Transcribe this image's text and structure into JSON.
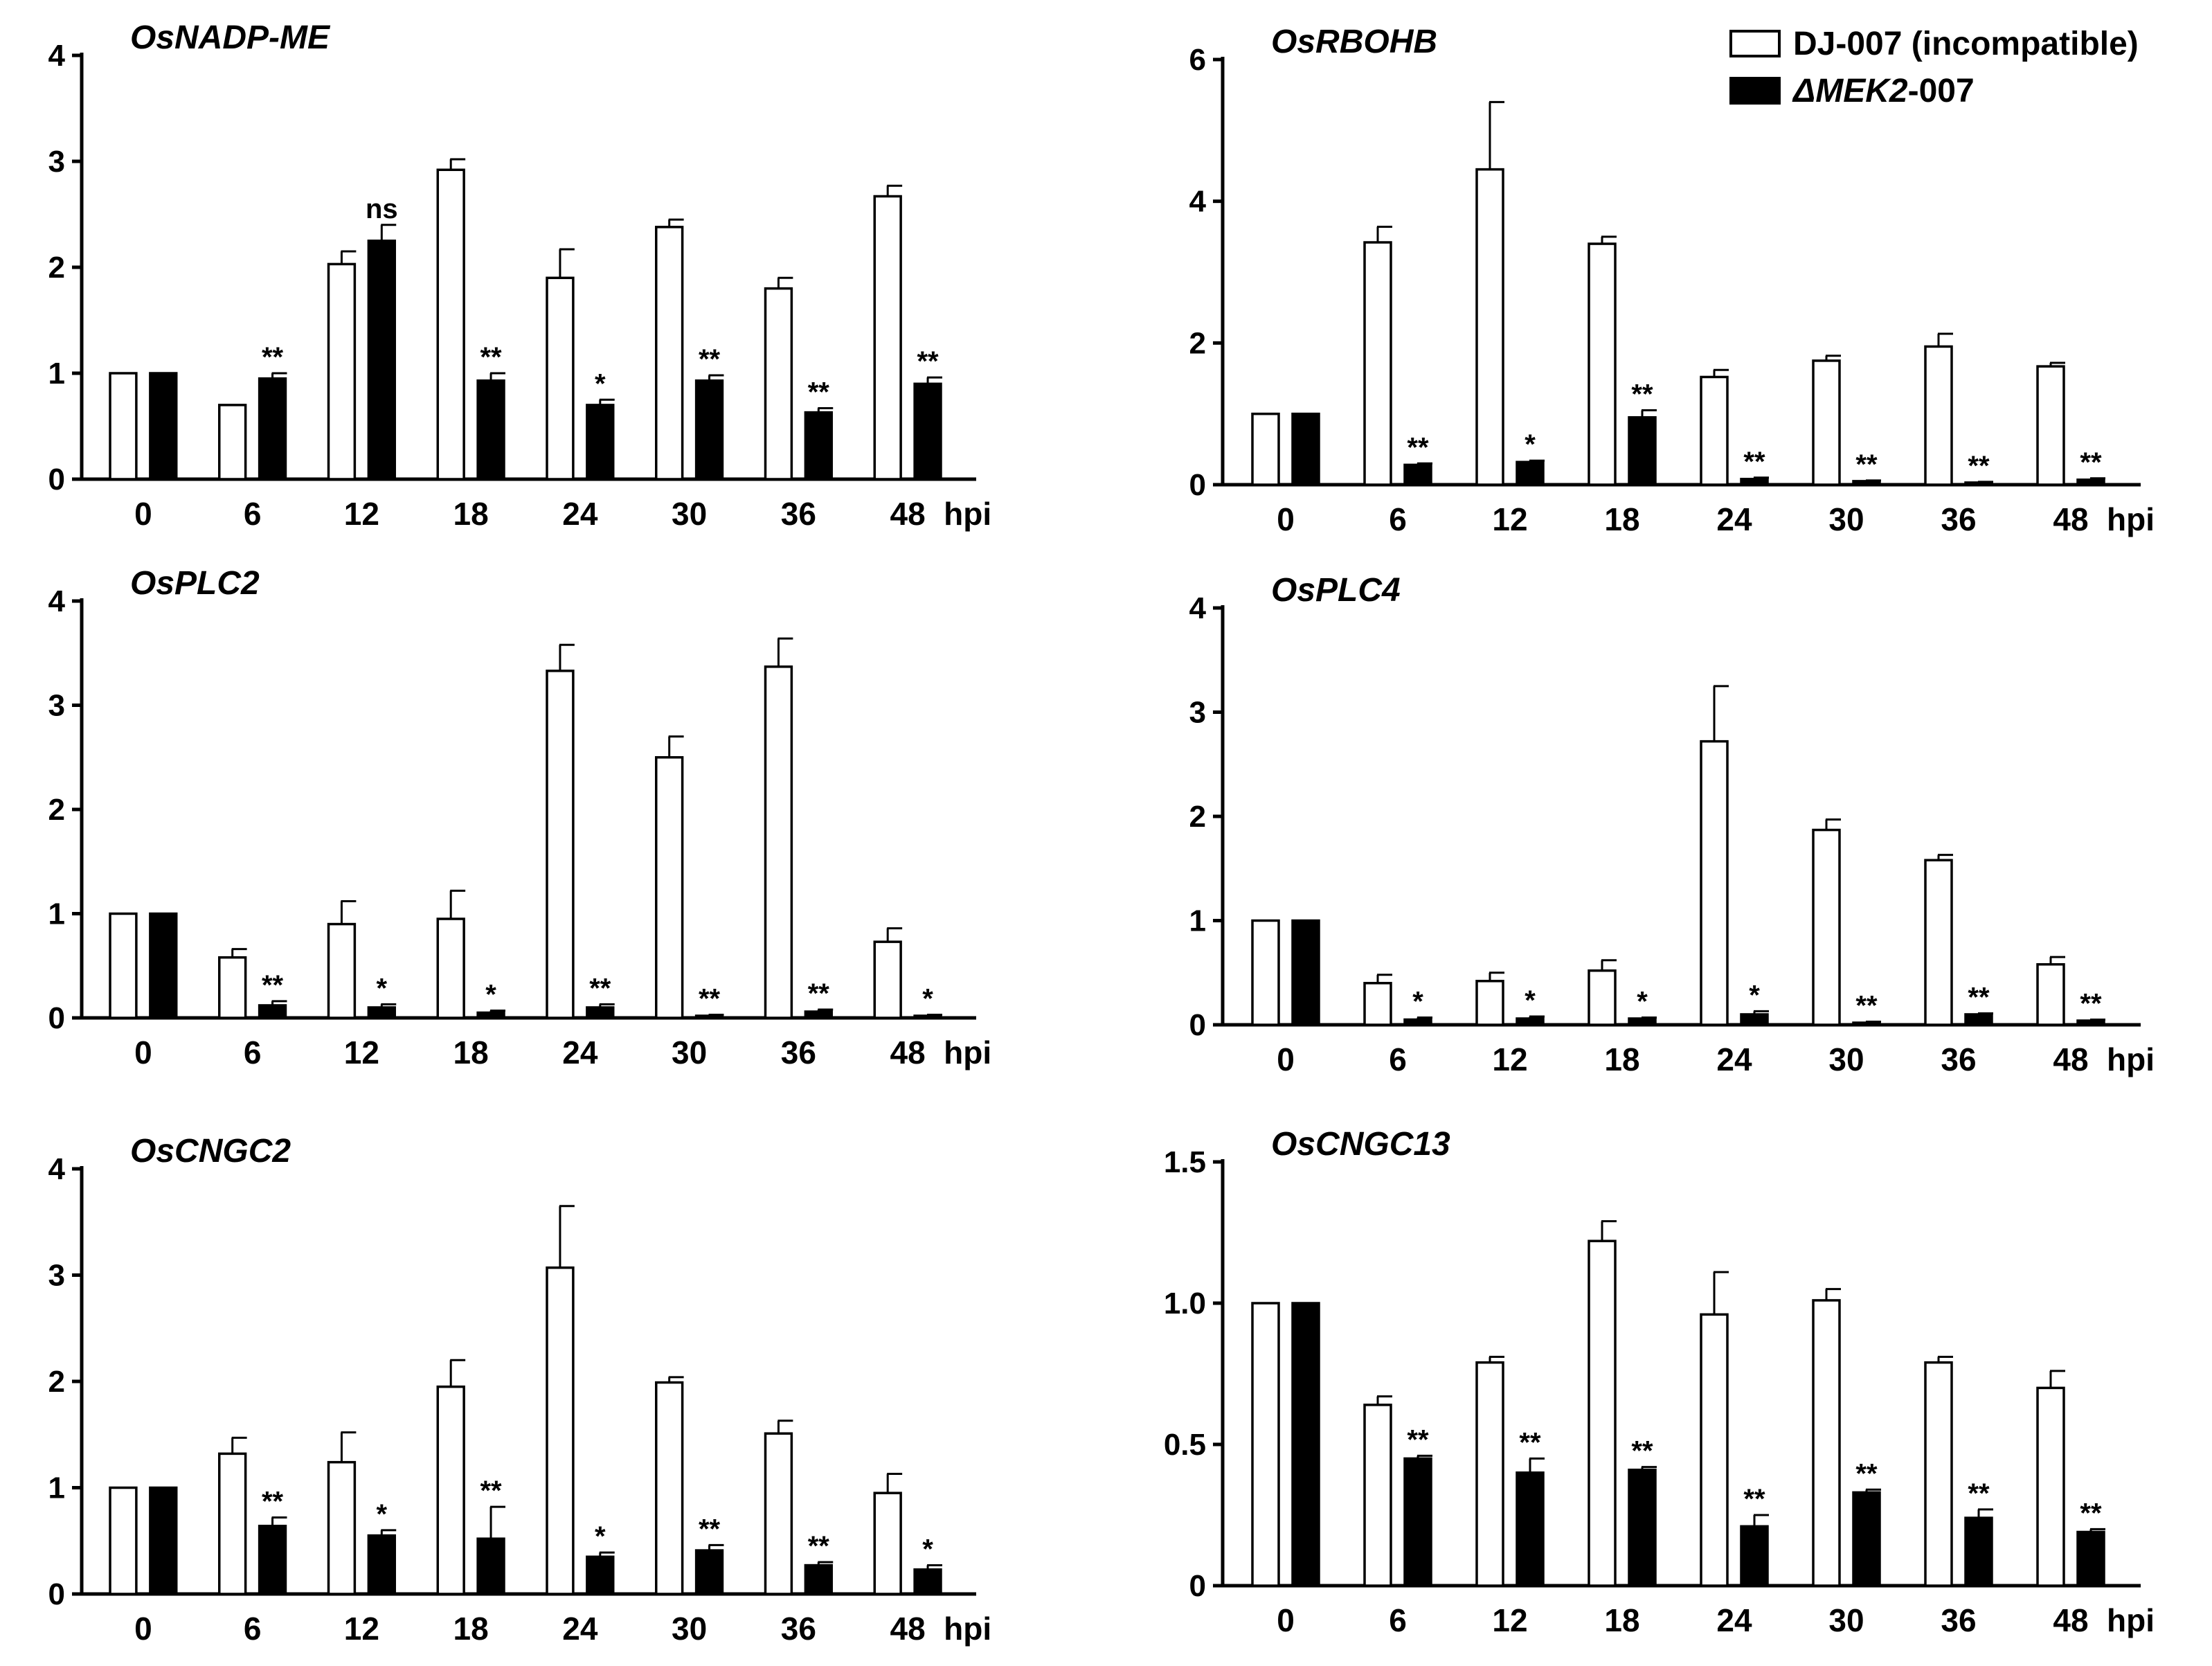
{
  "legend": {
    "entries": [
      {
        "label_parts": [
          {
            "text": "DJ-007 (incompatible)",
            "italic": false
          }
        ],
        "fill": "#ffffff"
      },
      {
        "label_parts": [
          {
            "text": "ΔMEK2",
            "italic": true
          },
          {
            "text": "-007",
            "italic": false
          }
        ],
        "fill": "#000000"
      }
    ]
  },
  "colors": {
    "open_bar": "#ffffff",
    "filled_bar": "#000000",
    "stroke": "#000000"
  },
  "chart_data": [
    {
      "type": "bar",
      "title": "OsNADP-ME",
      "categories": [
        "0",
        "6",
        "12",
        "18",
        "24",
        "30",
        "36",
        "48"
      ],
      "x_unit": "hpi",
      "ylim": [
        0,
        4
      ],
      "yticks": [
        "0",
        "1",
        "2",
        "3",
        "4"
      ],
      "series": [
        {
          "values": [
            1.0,
            0.7,
            2.03,
            2.92,
            1.9,
            2.38,
            1.8,
            2.67
          ],
          "errors": [
            0,
            0,
            0.12,
            0.1,
            0.27,
            0.07,
            0.1,
            0.1
          ]
        },
        {
          "values": [
            1.0,
            0.95,
            2.25,
            0.93,
            0.7,
            0.93,
            0.63,
            0.9
          ],
          "errors": [
            0,
            0.05,
            0.15,
            0.07,
            0.05,
            0.05,
            0.04,
            0.06
          ]
        }
      ],
      "significance": [
        "",
        "**",
        "ns",
        "**",
        "*",
        "**",
        "**",
        "**"
      ]
    },
    {
      "type": "bar",
      "title": "OsRBOHB",
      "categories": [
        "0",
        "6",
        "12",
        "18",
        "24",
        "30",
        "36",
        "48"
      ],
      "x_unit": "hpi",
      "ylim": [
        0,
        6
      ],
      "yticks": [
        "0",
        "2",
        "4",
        "6"
      ],
      "series": [
        {
          "values": [
            1.0,
            3.42,
            4.45,
            3.4,
            1.52,
            1.75,
            1.95,
            1.67
          ],
          "errors": [
            0,
            0.22,
            0.95,
            0.1,
            0.1,
            0.07,
            0.18,
            0.05
          ]
        },
        {
          "values": [
            1.0,
            0.28,
            0.32,
            0.95,
            0.08,
            0.05,
            0.03,
            0.07
          ],
          "errors": [
            0,
            0.02,
            0.02,
            0.1,
            0.02,
            0.01,
            0.01,
            0.02
          ]
        }
      ],
      "significance": [
        "",
        "**",
        "*",
        "**",
        "**",
        "**",
        "**",
        "**"
      ]
    },
    {
      "type": "bar",
      "title": "OsPLC2",
      "categories": [
        "0",
        "6",
        "12",
        "18",
        "24",
        "30",
        "36",
        "48"
      ],
      "x_unit": "hpi",
      "ylim": [
        0,
        4
      ],
      "yticks": [
        "0",
        "1",
        "2",
        "3",
        "4"
      ],
      "series": [
        {
          "values": [
            1.0,
            0.58,
            0.9,
            0.95,
            3.33,
            2.5,
            3.37,
            0.73
          ],
          "errors": [
            0,
            0.08,
            0.22,
            0.27,
            0.25,
            0.2,
            0.27,
            0.13
          ]
        },
        {
          "values": [
            1.0,
            0.12,
            0.1,
            0.05,
            0.1,
            0.02,
            0.06,
            0.02
          ],
          "errors": [
            0,
            0.04,
            0.03,
            0.02,
            0.03,
            0.01,
            0.02,
            0.01
          ]
        }
      ],
      "significance": [
        "",
        "**",
        "*",
        "*",
        "**",
        "**",
        "**",
        "*"
      ]
    },
    {
      "type": "bar",
      "title": "OsPLC4",
      "categories": [
        "0",
        "6",
        "12",
        "18",
        "24",
        "30",
        "36",
        "48"
      ],
      "x_unit": "hpi",
      "ylim": [
        0,
        4
      ],
      "yticks": [
        "0",
        "1",
        "2",
        "3",
        "4"
      ],
      "series": [
        {
          "values": [
            1.0,
            0.4,
            0.42,
            0.52,
            2.72,
            1.87,
            1.58,
            0.58
          ],
          "errors": [
            0,
            0.08,
            0.08,
            0.1,
            0.53,
            0.1,
            0.05,
            0.07
          ]
        },
        {
          "values": [
            1.0,
            0.05,
            0.06,
            0.06,
            0.1,
            0.02,
            0.1,
            0.04
          ],
          "errors": [
            0,
            0.02,
            0.02,
            0.01,
            0.03,
            0.01,
            0.01,
            0.01
          ]
        }
      ],
      "significance": [
        "",
        "*",
        "*",
        "*",
        "*",
        "**",
        "**",
        "**"
      ]
    },
    {
      "type": "bar",
      "title": "OsCNGC2",
      "categories": [
        "0",
        "6",
        "12",
        "18",
        "24",
        "30",
        "36",
        "48"
      ],
      "x_unit": "hpi",
      "ylim": [
        0,
        4
      ],
      "yticks": [
        "0",
        "1",
        "2",
        "3",
        "4"
      ],
      "series": [
        {
          "values": [
            1.0,
            1.32,
            1.24,
            1.95,
            3.07,
            1.99,
            1.51,
            0.95
          ],
          "errors": [
            0,
            0.15,
            0.28,
            0.25,
            0.58,
            0.05,
            0.12,
            0.18
          ]
        },
        {
          "values": [
            1.0,
            0.64,
            0.55,
            0.52,
            0.35,
            0.41,
            0.27,
            0.23
          ],
          "errors": [
            0,
            0.08,
            0.05,
            0.3,
            0.04,
            0.05,
            0.03,
            0.04
          ]
        }
      ],
      "significance": [
        "",
        "**",
        "*",
        "**",
        "*",
        "**",
        "**",
        "*"
      ]
    },
    {
      "type": "bar",
      "title": "OsCNGC13",
      "categories": [
        "0",
        "6",
        "12",
        "18",
        "24",
        "30",
        "36",
        "48"
      ],
      "x_unit": "hpi",
      "ylim": [
        0,
        1.5
      ],
      "yticks": [
        "0",
        "0.5",
        "1.0",
        "1.5"
      ],
      "series": [
        {
          "values": [
            1.0,
            0.64,
            0.79,
            1.22,
            0.96,
            1.01,
            0.79,
            0.7
          ],
          "errors": [
            0,
            0.03,
            0.02,
            0.07,
            0.15,
            0.04,
            0.02,
            0.06
          ]
        },
        {
          "values": [
            1.0,
            0.45,
            0.4,
            0.41,
            0.21,
            0.33,
            0.24,
            0.19
          ],
          "errors": [
            0,
            0.01,
            0.05,
            0.01,
            0.04,
            0.01,
            0.03,
            0.01
          ]
        }
      ],
      "significance": [
        "",
        "**",
        "**",
        "**",
        "**",
        "**",
        "**",
        "**"
      ]
    }
  ]
}
